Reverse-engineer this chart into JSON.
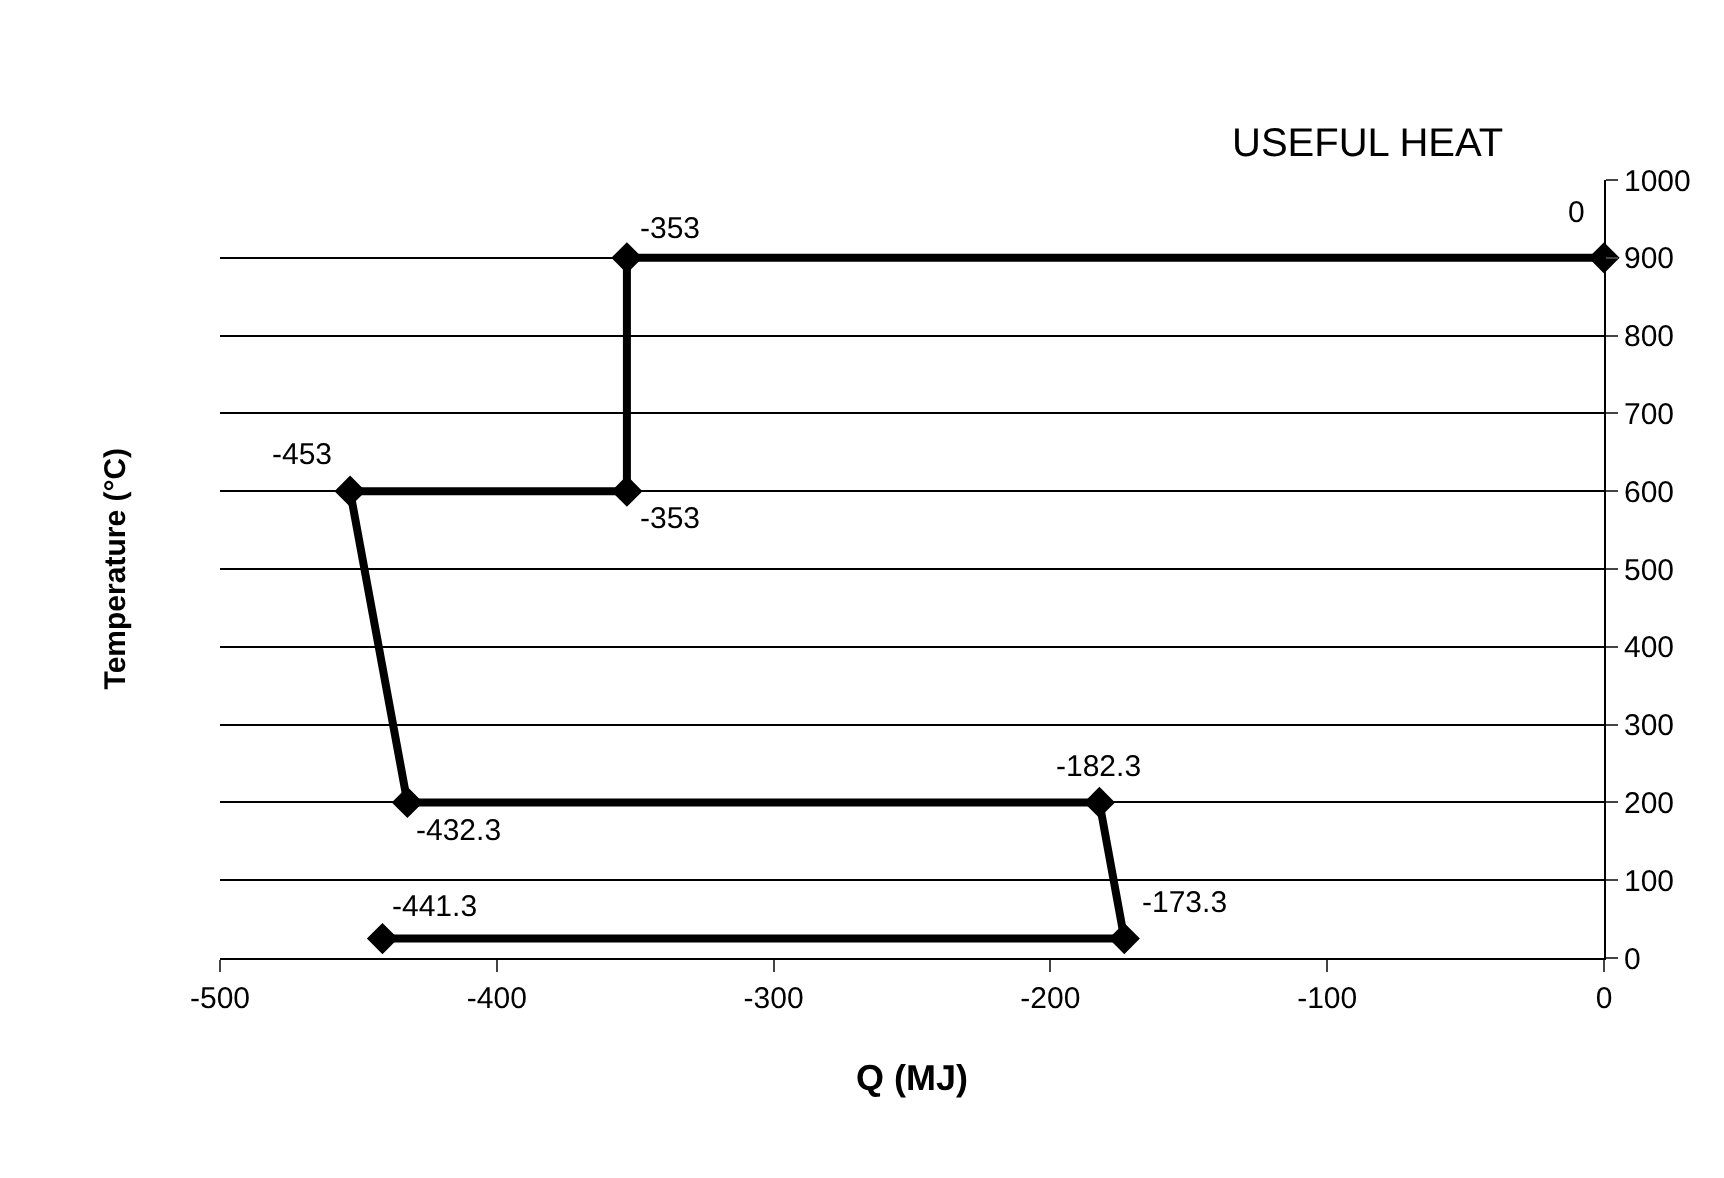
{
  "chart_data": {
    "type": "line",
    "xlabel": "Q (MJ)",
    "ylabel": "Temperature (°C)",
    "annotations": [
      "USEFUL HEAT",
      {
        "text": "0",
        "x": 0,
        "y": 900
      },
      {
        "text": "-353",
        "x": -353,
        "y": 900
      },
      {
        "text": "-353",
        "x": -353,
        "y": 600
      },
      {
        "text": "-453",
        "x": -453,
        "y": 600
      },
      {
        "text": "-432.3",
        "x": -432.3,
        "y": 200
      },
      {
        "text": "-182.3",
        "x": -182.3,
        "y": 200
      },
      {
        "text": "-173.3",
        "x": -173.3,
        "y": 25
      },
      {
        "text": "-441.3",
        "x": -441.3,
        "y": 25
      }
    ],
    "x": [
      0,
      -353,
      -353,
      -453,
      -432.3,
      -182.3,
      -173.3,
      -441.3
    ],
    "series": [
      {
        "color": "#000000",
        "values": [
          900,
          900,
          600,
          600,
          200,
          200,
          25,
          25
        ]
      }
    ],
    "xlim": [
      -500,
      0
    ],
    "xticks": [
      -500,
      -400,
      -300,
      -200,
      -100,
      0
    ],
    "ylim": [
      0,
      1000
    ],
    "yticks": [
      0,
      100,
      200,
      300,
      400,
      500,
      600,
      700,
      800,
      900,
      1000
    ],
    "grid": "y",
    "marker": "diamond",
    "line_style": "solid",
    "legend": false
  }
}
